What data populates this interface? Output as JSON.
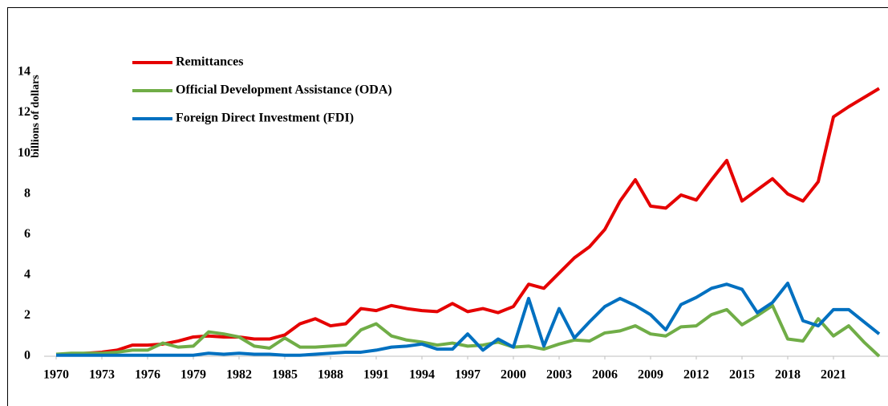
{
  "chart_data": {
    "type": "line",
    "y_label": "billions of dollars",
    "x": [
      1970,
      1971,
      1972,
      1973,
      1974,
      1975,
      1976,
      1977,
      1978,
      1979,
      1980,
      1981,
      1982,
      1983,
      1984,
      1985,
      1986,
      1987,
      1988,
      1989,
      1990,
      1991,
      1992,
      1993,
      1994,
      1995,
      1996,
      1997,
      1998,
      1999,
      2000,
      2001,
      2002,
      2003,
      2004,
      2005,
      2006,
      2007,
      2008,
      2009,
      2010,
      2011,
      2012,
      2013,
      2014,
      2015,
      2016,
      2017,
      2018,
      2019,
      2020,
      2021,
      2022,
      2023,
      2024
    ],
    "xlim": [
      1970,
      2024
    ],
    "xticks": [
      1970,
      1973,
      1976,
      1979,
      1982,
      1985,
      1988,
      1991,
      1994,
      1997,
      2000,
      2003,
      2006,
      2009,
      2012,
      2015,
      2018,
      2021
    ],
    "ylim": [
      0,
      14
    ],
    "yticks": [
      0,
      2,
      4,
      6,
      8,
      10,
      12,
      14
    ],
    "grid": false,
    "legend": "upper left",
    "series": [
      {
        "name": "Remittances",
        "color": "#e50000",
        "values": [
          0.1,
          0.1,
          0.15,
          0.2,
          0.3,
          0.55,
          0.55,
          0.6,
          0.75,
          0.95,
          1.0,
          0.95,
          0.95,
          0.85,
          0.85,
          1.05,
          1.6,
          1.85,
          1.5,
          1.6,
          2.35,
          2.25,
          2.5,
          2.35,
          2.25,
          2.2,
          2.6,
          2.2,
          2.35,
          2.15,
          2.45,
          3.55,
          3.35,
          4.1,
          4.85,
          5.4,
          6.25,
          7.65,
          8.7,
          7.4,
          7.3,
          7.95,
          7.7,
          8.7,
          9.65,
          7.65,
          8.2,
          8.75,
          8.0,
          7.65,
          8.6,
          11.8,
          12.3,
          12.75,
          13.2
        ]
      },
      {
        "name": "Official Development Assistance (ODA)",
        "color": "#70ad47",
        "values": [
          0.1,
          0.15,
          0.15,
          0.15,
          0.2,
          0.3,
          0.3,
          0.65,
          0.45,
          0.5,
          1.2,
          1.1,
          0.95,
          0.5,
          0.4,
          0.9,
          0.45,
          0.45,
          0.5,
          0.55,
          1.3,
          1.6,
          1.0,
          0.8,
          0.7,
          0.55,
          0.65,
          0.5,
          0.55,
          0.7,
          0.45,
          0.5,
          0.35,
          0.6,
          0.8,
          0.75,
          1.15,
          1.25,
          1.5,
          1.1,
          1.0,
          1.45,
          1.5,
          2.05,
          2.3,
          1.55,
          2.0,
          2.5,
          0.85,
          0.75,
          1.85,
          1.0,
          1.5,
          0.7,
          0
        ]
      },
      {
        "name": "Foreign Direct Investment (FDI)",
        "color": "#0070c0",
        "values": [
          0.05,
          0.05,
          0.05,
          0.05,
          0.05,
          0.05,
          0.05,
          0.05,
          0.05,
          0.05,
          0.15,
          0.1,
          0.15,
          0.1,
          0.1,
          0.05,
          0.05,
          0.1,
          0.15,
          0.2,
          0.2,
          0.3,
          0.45,
          0.5,
          0.6,
          0.35,
          0.35,
          1.1,
          0.3,
          0.85,
          0.45,
          2.85,
          0.5,
          2.35,
          0.9,
          1.7,
          2.45,
          2.85,
          2.5,
          2.05,
          1.3,
          2.55,
          2.9,
          3.35,
          3.55,
          3.3,
          2.15,
          2.65,
          3.6,
          1.75,
          1.5,
          2.3,
          2.3,
          1.7,
          1.1
        ]
      }
    ]
  }
}
